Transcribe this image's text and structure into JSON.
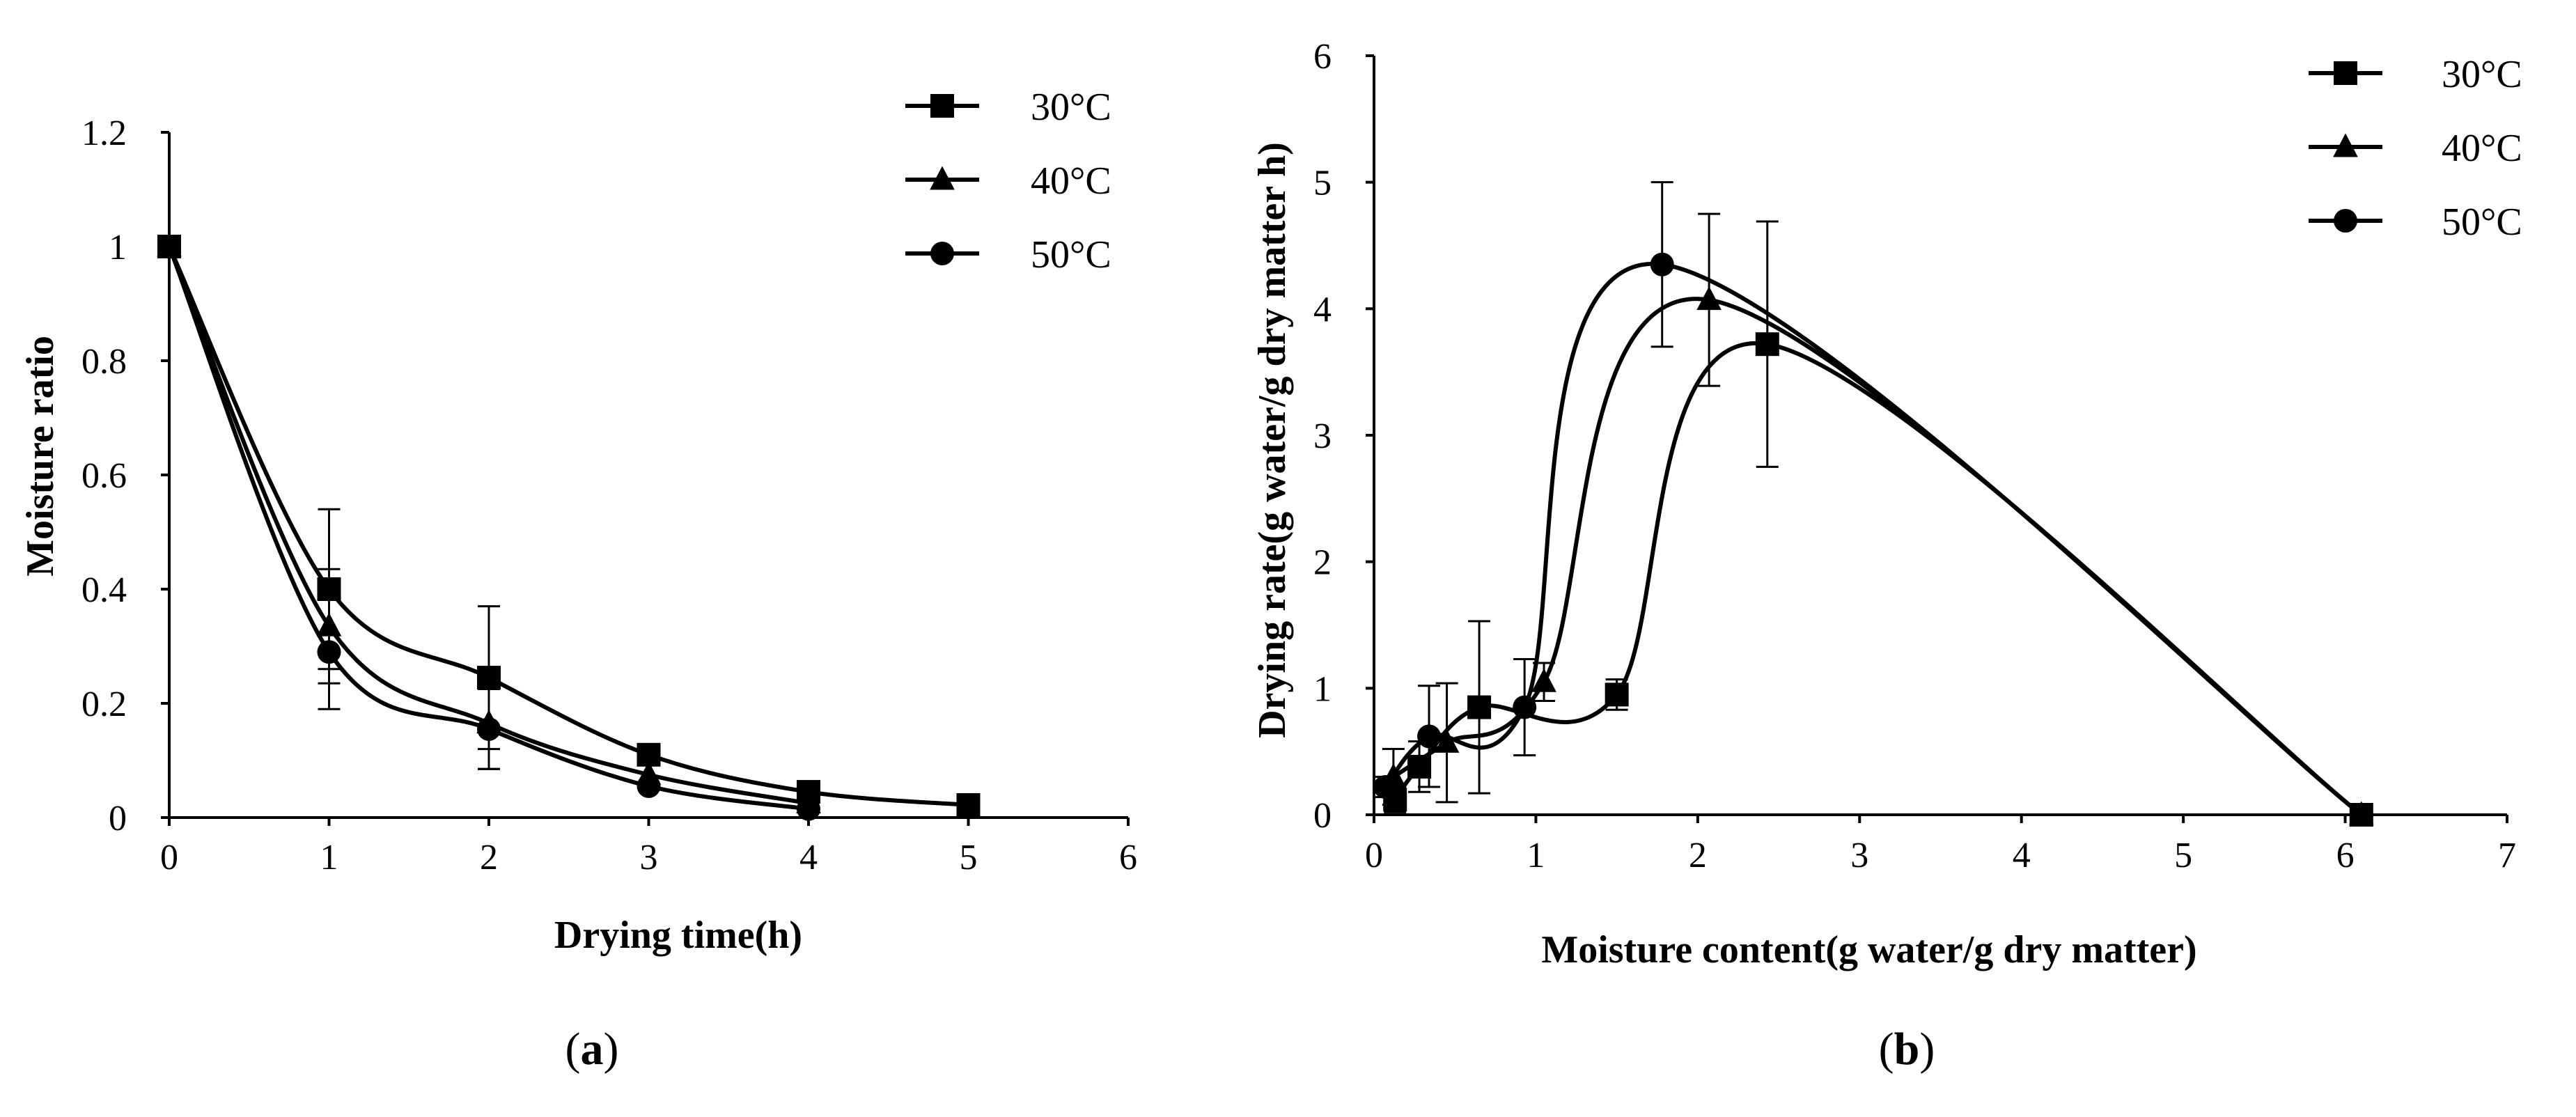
{
  "chart_data": [
    {
      "id": "a",
      "type": "line",
      "panel_label": "a",
      "title": "",
      "xlabel": "Drying time(h)",
      "ylabel": "Moisture ratio",
      "xlim": [
        0,
        6
      ],
      "ylim": [
        0,
        1.2
      ],
      "xticks": [
        0,
        1,
        2,
        3,
        4,
        5,
        6
      ],
      "yticks": [
        0,
        0.2,
        0.4,
        0.6,
        0.8,
        1,
        1.2
      ],
      "xtick_labels": [
        "0",
        "1",
        "2",
        "3",
        "4",
        "5",
        "6"
      ],
      "ytick_labels": [
        "0",
        "0.2",
        "0.4",
        "0.6",
        "0.8",
        "1",
        "1.2"
      ],
      "legend_position": "top-right",
      "series": [
        {
          "name": "30°C",
          "marker": "square",
          "x": [
            0,
            1,
            2,
            3,
            4,
            5
          ],
          "y": [
            1.0,
            0.4,
            0.245,
            0.11,
            0.045,
            0.022
          ],
          "err": [
            0,
            0.14,
            0.125,
            0,
            0,
            0
          ]
        },
        {
          "name": "40°C",
          "marker": "triangle",
          "x": [
            0,
            1,
            2,
            3,
            4
          ],
          "y": [
            1.0,
            0.335,
            0.165,
            0.075,
            0.025
          ],
          "err": [
            0,
            0.1,
            0.08,
            0,
            0
          ]
        },
        {
          "name": "50°C",
          "marker": "circle",
          "x": [
            0,
            1,
            2,
            3,
            4
          ],
          "y": [
            1.0,
            0.29,
            0.155,
            0.055,
            0.015
          ],
          "err": [
            0,
            0.1,
            0.07,
            0,
            0
          ]
        }
      ]
    },
    {
      "id": "b",
      "type": "line",
      "panel_label": "b",
      "title": "",
      "xlabel": "Moisture content(g water/g dry matter)",
      "ylabel": "Drying rate(g water/g dry matter h)",
      "xlim": [
        0,
        7
      ],
      "ylim": [
        0,
        6
      ],
      "xticks": [
        0,
        1,
        2,
        3,
        4,
        5,
        6,
        7
      ],
      "yticks": [
        0,
        1,
        2,
        3,
        4,
        5,
        6
      ],
      "xtick_labels": [
        "0",
        "1",
        "2",
        "3",
        "4",
        "5",
        "6",
        "7"
      ],
      "ytick_labels": [
        "0",
        "1",
        "2",
        "3",
        "4",
        "5",
        "6"
      ],
      "legend_position": "top-right",
      "series": [
        {
          "name": "30°C",
          "marker": "square",
          "x": [
            0.13,
            0.28,
            0.65,
            1.5,
            2.43,
            6.1
          ],
          "y": [
            0.12,
            0.38,
            0.85,
            0.95,
            3.72,
            0.0
          ],
          "err": [
            0.1,
            0.2,
            0.68,
            0.12,
            0.97,
            0
          ]
        },
        {
          "name": "40°C",
          "marker": "triangle",
          "x": [
            0.12,
            0.45,
            1.05,
            2.07,
            6.1
          ],
          "y": [
            0.3,
            0.57,
            1.05,
            4.07,
            0.0
          ],
          "err": [
            0.22,
            0.47,
            0.15,
            0.68,
            0
          ]
        },
        {
          "name": "50°C",
          "marker": "circle",
          "x": [
            0.07,
            0.34,
            0.93,
            1.78,
            6.1
          ],
          "y": [
            0.22,
            0.62,
            0.85,
            4.35,
            0.0
          ],
          "err": [
            0.08,
            0.4,
            0.38,
            0.65,
            0
          ]
        }
      ]
    }
  ]
}
